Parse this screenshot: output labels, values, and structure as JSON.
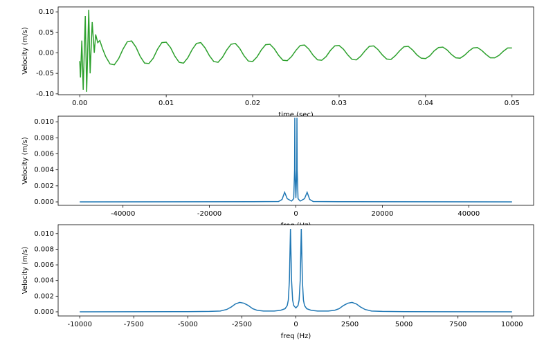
{
  "chart_data": [
    {
      "type": "line",
      "ylabel": "Velocity (m/s)",
      "xlabel": "time (sec)",
      "color": "#2ca02c",
      "xlim": [
        -0.0025,
        0.0525
      ],
      "ylim": [
        -0.102,
        0.112
      ],
      "xticks": [
        {
          "value": 0,
          "label": "0.00"
        },
        {
          "value": 0.01,
          "label": "0.01"
        },
        {
          "value": 0.02,
          "label": "0.02"
        },
        {
          "value": 0.03,
          "label": "0.03"
        },
        {
          "value": 0.04,
          "label": "0.04"
        },
        {
          "value": 0.05,
          "label": "0.05"
        }
      ],
      "yticks": [
        {
          "value": -0.1,
          "label": "-0.10"
        },
        {
          "value": -0.05,
          "label": "-0.05"
        },
        {
          "value": 0,
          "label": "0.00"
        },
        {
          "value": 0.05,
          "label": "0.05"
        },
        {
          "value": 0.1,
          "label": "0.10"
        }
      ],
      "x": [
        0,
        8e-05,
        0.00024,
        0.0004,
        0.00064,
        0.0008,
        0.00104,
        0.0012,
        0.00144,
        0.00168,
        0.00184,
        0.00208,
        0.00232,
        0.00264,
        0.003,
        0.0035,
        0.004,
        0.0045,
        0.005,
        0.0055,
        0.006,
        0.0065,
        0.007,
        0.0075,
        0.008,
        0.0085,
        0.009,
        0.0095,
        0.01,
        0.0105,
        0.011,
        0.0115,
        0.012,
        0.0125,
        0.013,
        0.0135,
        0.014,
        0.0145,
        0.015,
        0.0155,
        0.016,
        0.0165,
        0.017,
        0.0175,
        0.018,
        0.0185,
        0.019,
        0.0195,
        0.02,
        0.0205,
        0.021,
        0.0215,
        0.022,
        0.0225,
        0.023,
        0.0235,
        0.024,
        0.0245,
        0.025,
        0.0255,
        0.026,
        0.0265,
        0.027,
        0.0275,
        0.028,
        0.0285,
        0.029,
        0.0295,
        0.03,
        0.0305,
        0.031,
        0.0315,
        0.032,
        0.0325,
        0.033,
        0.0335,
        0.034,
        0.0345,
        0.035,
        0.0355,
        0.036,
        0.0365,
        0.037,
        0.0375,
        0.038,
        0.0385,
        0.039,
        0.0395,
        0.04,
        0.0405,
        0.041,
        0.0415,
        0.042,
        0.0425,
        0.043,
        0.0435,
        0.044,
        0.0445,
        0.045,
        0.0455,
        0.046,
        0.0465,
        0.047,
        0.0475,
        0.048,
        0.0485,
        0.049,
        0.0495,
        0.05
      ],
      "values": [
        -0.02,
        -0.06,
        0.03,
        -0.09,
        0.09,
        -0.095,
        0.105,
        -0.05,
        0.075,
        0.0,
        0.045,
        0.025,
        0.03,
        0.01,
        -0.009,
        -0.027,
        -0.029,
        -0.014,
        0.009,
        0.027,
        0.029,
        0.014,
        -0.009,
        -0.025,
        -0.026,
        -0.013,
        0.009,
        0.025,
        0.026,
        0.013,
        -0.008,
        -0.023,
        -0.025,
        -0.012,
        0.008,
        0.023,
        0.025,
        0.012,
        -0.007,
        -0.021,
        -0.023,
        -0.011,
        0.007,
        0.021,
        0.023,
        0.011,
        -0.007,
        -0.02,
        -0.021,
        -0.01,
        0.007,
        0.02,
        0.021,
        0.01,
        -0.006,
        -0.018,
        -0.019,
        -0.009,
        0.006,
        0.018,
        0.019,
        0.009,
        -0.006,
        -0.017,
        -0.018,
        -0.009,
        0.006,
        0.017,
        0.018,
        0.009,
        -0.005,
        -0.016,
        -0.017,
        -0.008,
        0.005,
        0.016,
        0.017,
        0.008,
        -0.005,
        -0.015,
        -0.016,
        -0.007,
        0.005,
        0.015,
        0.016,
        0.007,
        -0.005,
        -0.013,
        -0.014,
        -0.007,
        0.005,
        0.013,
        0.014,
        0.007,
        -0.004,
        -0.012,
        -0.013,
        -0.006,
        0.004,
        0.012,
        0.013,
        0.006,
        -0.004,
        -0.012,
        -0.012,
        -0.006,
        0.004,
        0.012,
        0.012
      ]
    },
    {
      "type": "line",
      "ylabel": "Velocity (m/s)",
      "xlabel": "freq (Hz)",
      "color": "#1f77b4",
      "xlim": [
        -55000,
        55000
      ],
      "ylim": [
        -0.00043,
        0.0107
      ],
      "xticks": [
        -40000,
        -20000,
        0,
        20000,
        40000
      ],
      "yticks": [
        {
          "value": 0,
          "label": "0.000"
        },
        {
          "value": 0.002,
          "label": "0.002"
        },
        {
          "value": 0.004,
          "label": "0.004"
        },
        {
          "value": 0.006,
          "label": "0.006"
        },
        {
          "value": 0.008,
          "label": "0.008"
        },
        {
          "value": 0.01,
          "label": "0.010"
        }
      ],
      "x": [
        -50000,
        -10000,
        -4000,
        -3200,
        -2600,
        -2000,
        -1000,
        -500,
        -300,
        -250,
        -200,
        0,
        200,
        250,
        300,
        500,
        1000,
        2000,
        2600,
        3200,
        4000,
        10000,
        50000
      ],
      "values": [
        0,
        2e-05,
        5e-05,
        0.0003,
        0.0012,
        0.0004,
        0.0001,
        0.0004,
        0.004,
        0.0105,
        0.004,
        0.0005,
        0.004,
        0.0105,
        0.004,
        0.0004,
        0.0001,
        0.0004,
        0.0012,
        0.0003,
        5e-05,
        2e-05,
        0
      ]
    },
    {
      "type": "line",
      "ylabel": "Velocity (m/s)",
      "xlabel": "freq (Hz)",
      "color": "#1f77b4",
      "xlim": [
        -11000,
        11000
      ],
      "ylim": [
        -0.00053,
        0.01113
      ],
      "xticks": [
        -10000,
        -7500,
        -5000,
        -2500,
        0,
        2500,
        5000,
        7500,
        10000
      ],
      "yticks": [
        {
          "value": 0,
          "label": "0.000"
        },
        {
          "value": 0.002,
          "label": "0.002"
        },
        {
          "value": 0.004,
          "label": "0.004"
        },
        {
          "value": 0.006,
          "label": "0.006"
        },
        {
          "value": 0.008,
          "label": "0.008"
        },
        {
          "value": 0.01,
          "label": "0.010"
        }
      ],
      "x": [
        -10000,
        -5000,
        -4000,
        -3500,
        -3200,
        -3000,
        -2800,
        -2600,
        -2400,
        -2200,
        -2000,
        -1800,
        -1500,
        -1000,
        -700,
        -500,
        -400,
        -350,
        -300,
        -270,
        -250,
        -230,
        -200,
        -150,
        -100,
        0,
        100,
        150,
        200,
        230,
        250,
        270,
        300,
        350,
        400,
        500,
        700,
        1000,
        1500,
        1800,
        2000,
        2200,
        2400,
        2600,
        2800,
        3000,
        3200,
        3500,
        4000,
        5000,
        10000
      ],
      "values": [
        0,
        2e-05,
        5e-05,
        0.0001,
        0.0003,
        0.0006,
        0.001,
        0.0012,
        0.0011,
        0.0008,
        0.0004,
        0.0002,
        0.0001,
        0.0001,
        0.0002,
        0.0004,
        0.0008,
        0.0015,
        0.004,
        0.008,
        0.0106,
        0.008,
        0.004,
        0.0015,
        0.0008,
        0.0005,
        0.0008,
        0.0015,
        0.004,
        0.008,
        0.0106,
        0.008,
        0.004,
        0.0015,
        0.0008,
        0.0004,
        0.0002,
        0.0001,
        0.0001,
        0.0002,
        0.0004,
        0.0008,
        0.0011,
        0.0012,
        0.001,
        0.0006,
        0.0003,
        0.0001,
        5e-05,
        2e-05,
        0
      ]
    }
  ]
}
